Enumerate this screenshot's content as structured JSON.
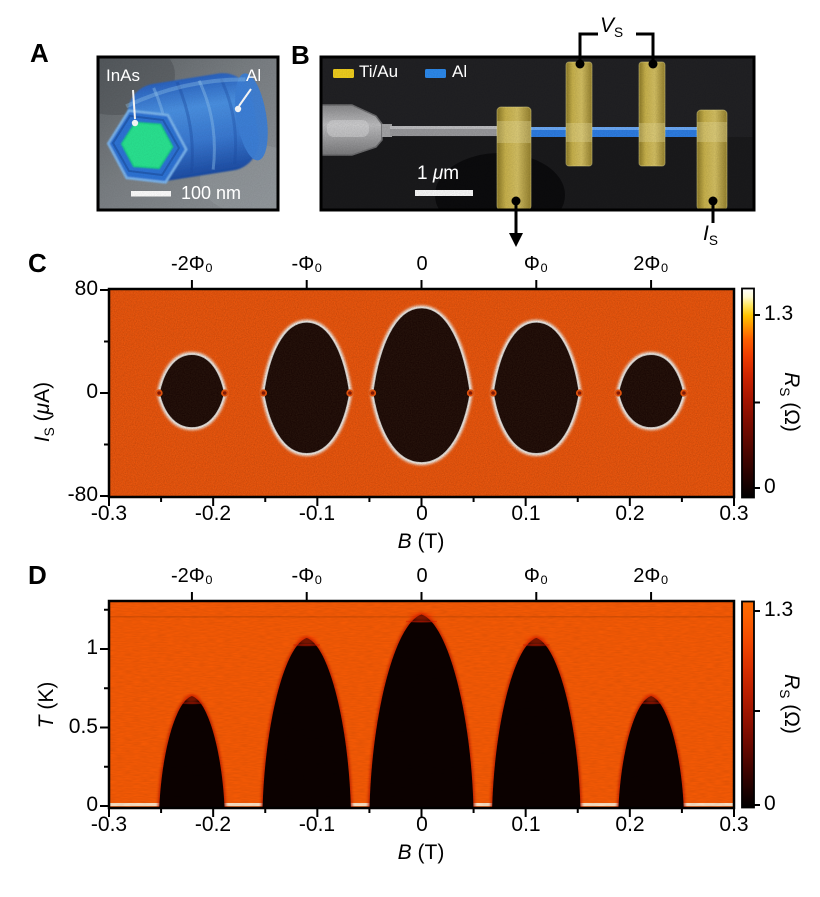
{
  "figure": {
    "panelA": {
      "label": "A",
      "core_label": "InAs",
      "shell_label": "Al",
      "scalebar_label": "100 nm"
    },
    "panelB": {
      "label": "B",
      "legend": {
        "tiau": "Ti/Au",
        "al": "Al"
      },
      "legend_colors": {
        "tiau": "#f6d31f",
        "al": "#2e8df2"
      },
      "scalebar_pre": "1 ",
      "scalebar_mu": "μ",
      "scalebar_post": "m",
      "vs_var": "V",
      "vs_sub": "S",
      "is_var": "I",
      "is_sub": "S"
    },
    "panelC": {
      "label": "C",
      "top_tick_labels": [
        "-2Φ₀",
        "-Φ₀",
        "0",
        "Φ₀",
        "2Φ₀"
      ],
      "xtick_labels": [
        "-0.3",
        "-0.2",
        "-0.1",
        "0",
        "0.1",
        "0.2",
        "0.3"
      ],
      "ytick_labels": [
        "80",
        "0",
        "-80"
      ],
      "xlabel_var": "B",
      "xlabel_unit": " (T)",
      "ylabel_var": "I",
      "ylabel_sub": "S",
      "ylabel_unit_open": " (",
      "ylabel_unit_mu": "μ",
      "ylabel_unit_close": "A)",
      "cbar_var": "R",
      "cbar_sub": "S",
      "cbar_unit": " (Ω)",
      "cbar_tick_labels": [
        "1.3",
        "0"
      ]
    },
    "panelD": {
      "label": "D",
      "top_tick_labels": [
        "-2Φ₀",
        "-Φ₀",
        "0",
        "Φ₀",
        "2Φ₀"
      ],
      "xtick_labels": [
        "-0.3",
        "-0.2",
        "-0.1",
        "0",
        "0.1",
        "0.2",
        "0.3"
      ],
      "ytick_labels": [
        "1",
        "0.5",
        "0"
      ],
      "xlabel_var": "B",
      "xlabel_unit": " (T)",
      "ylabel_var": "T",
      "ylabel_unit": " (K)",
      "cbar_var": "R",
      "cbar_sub": "S",
      "cbar_unit": " (Ω)",
      "cbar_tick_labels": [
        "1.3",
        "0"
      ]
    }
  },
  "chart_data": [
    {
      "type": "heatmap",
      "panel": "C",
      "title": "Sheet resistance R_S vs magnetic field B and bias current I_S (destructive Little-Parks lobes)",
      "xlabel": "B (T)",
      "ylabel": "I_S (μA)",
      "xlim": [
        -0.3,
        0.3
      ],
      "ylim": [
        -80,
        80
      ],
      "top_axis": {
        "ticks": [
          "-2Φ₀",
          "-Φ₀",
          "0",
          "Φ₀",
          "2Φ₀"
        ],
        "B_values": [
          -0.2204,
          -0.1102,
          0,
          0.1102,
          0.2204
        ]
      },
      "xticks": [
        -0.3,
        -0.2,
        -0.1,
        0,
        0.1,
        0.2,
        0.3
      ],
      "yticks": [
        80,
        0,
        -80
      ],
      "colorbar": {
        "label": "R_S (Ω)",
        "tick_values": [
          1.3,
          0
        ],
        "range": [
          0,
          1.5
        ]
      },
      "normal_state_R_ohm": 1.25,
      "flux_period_T": 0.1102,
      "background_color": "#f85407",
      "lobe_color": "#190402",
      "lobes": [
        {
          "center_B": -0.2204,
          "half_width_T": 0.0315,
          "I_top_uA": 30,
          "I_bottom_uA": -27
        },
        {
          "center_B": -0.1102,
          "half_width_T": 0.0415,
          "I_top_uA": 55,
          "I_bottom_uA": -47
        },
        {
          "center_B": 0.0,
          "half_width_T": 0.047,
          "I_top_uA": 66,
          "I_bottom_uA": -54
        },
        {
          "center_B": 0.1102,
          "half_width_T": 0.0415,
          "I_top_uA": 55,
          "I_bottom_uA": -47
        },
        {
          "center_B": 0.2204,
          "half_width_T": 0.0315,
          "I_top_uA": 30,
          "I_bottom_uA": -27
        }
      ]
    },
    {
      "type": "heatmap",
      "panel": "D",
      "title": "Sheet resistance R_S vs magnetic field B and temperature T (superconducting domes)",
      "xlabel": "B (T)",
      "ylabel": "T (K)",
      "xlim": [
        -0.3,
        0.3
      ],
      "ylim": [
        0,
        1.3
      ],
      "top_axis": {
        "ticks": [
          "-2Φ₀",
          "-Φ₀",
          "0",
          "Φ₀",
          "2Φ₀"
        ],
        "B_values": [
          -0.2204,
          -0.1102,
          0,
          0.1102,
          0.2204
        ]
      },
      "xticks": [
        -0.3,
        -0.2,
        -0.1,
        0,
        0.1,
        0.2,
        0.3
      ],
      "yticks": [
        1,
        0.5,
        0
      ],
      "colorbar": {
        "label": "R_S (Ω)",
        "tick_values": [
          1.3,
          0
        ],
        "range": [
          0,
          1.35
        ]
      },
      "background_color": "#fa5c06",
      "dome_color": "#0c0200",
      "domes": [
        {
          "center_B": -0.2204,
          "base_half_width_T": 0.0315,
          "Tc_K": 0.7
        },
        {
          "center_B": -0.1102,
          "base_half_width_T": 0.0425,
          "Tc_K": 1.07
        },
        {
          "center_B": 0.0,
          "base_half_width_T": 0.05,
          "Tc_K": 1.22
        },
        {
          "center_B": 0.1102,
          "base_half_width_T": 0.0425,
          "Tc_K": 1.07
        },
        {
          "center_B": 0.2204,
          "base_half_width_T": 0.0315,
          "Tc_K": 0.7
        }
      ]
    }
  ]
}
